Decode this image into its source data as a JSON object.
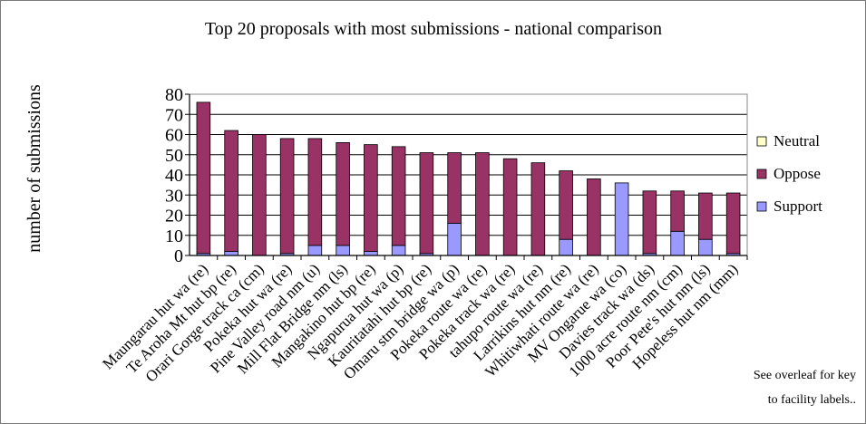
{
  "chart_data": {
    "type": "bar",
    "stacked": true,
    "title": "Top 20 proposals with most submissions - national comparison",
    "ylabel": "number of submissions",
    "xlabel": "",
    "ylim": [
      0,
      80
    ],
    "yticks": [
      0,
      10,
      20,
      30,
      40,
      50,
      60,
      70,
      80
    ],
    "grid": true,
    "legend_position": "right",
    "categories": [
      "Maungarau hut wa (re)",
      "Te Aroha Mt hut bp (re)",
      "Orari Gorge track ca (cm)",
      "Pokeka hut wa (re)",
      "Pine Valley road nm (u)",
      "Mill Flat Bridge nm (ls)",
      "Mangakino hut bp (re)",
      "Ngapurua hut wa (p)",
      "Kauritatahi hut bp (re)",
      "Omaru stm bridge wa (p)",
      "Pokeka route wa (re)",
      "Pokeka track wa (re)",
      "tahupo route wa (re)",
      "Larrikins hut nm (re)",
      "Whitiwhati route wa (re)",
      "MV Ongarue wa (co)",
      "Davies track wa (ds)",
      "1000 acre route nm (cm)",
      "Poor Pete's hut nm (ls)",
      "Hopeless hut nm (mm)"
    ],
    "series": [
      {
        "name": "Support",
        "color": "#9999ff",
        "values": [
          1,
          2,
          0,
          1,
          5,
          5,
          2,
          5,
          1,
          16,
          0,
          0,
          0,
          8,
          0,
          36,
          1,
          12,
          8,
          1
        ]
      },
      {
        "name": "Oppose",
        "color": "#993366",
        "values": [
          75,
          60,
          60,
          57,
          53,
          51,
          53,
          49,
          50,
          35,
          51,
          48,
          46,
          34,
          38,
          0,
          31,
          20,
          23,
          30
        ]
      },
      {
        "name": "Neutral",
        "color": "#ffffcc",
        "values": [
          0,
          0,
          0,
          0,
          0,
          0,
          0,
          0,
          0,
          0,
          0,
          0,
          0,
          0,
          0,
          0,
          0,
          0,
          0,
          0
        ]
      }
    ]
  },
  "note": {
    "line1": "See overleaf for key",
    "line2": "to facility labels.."
  }
}
